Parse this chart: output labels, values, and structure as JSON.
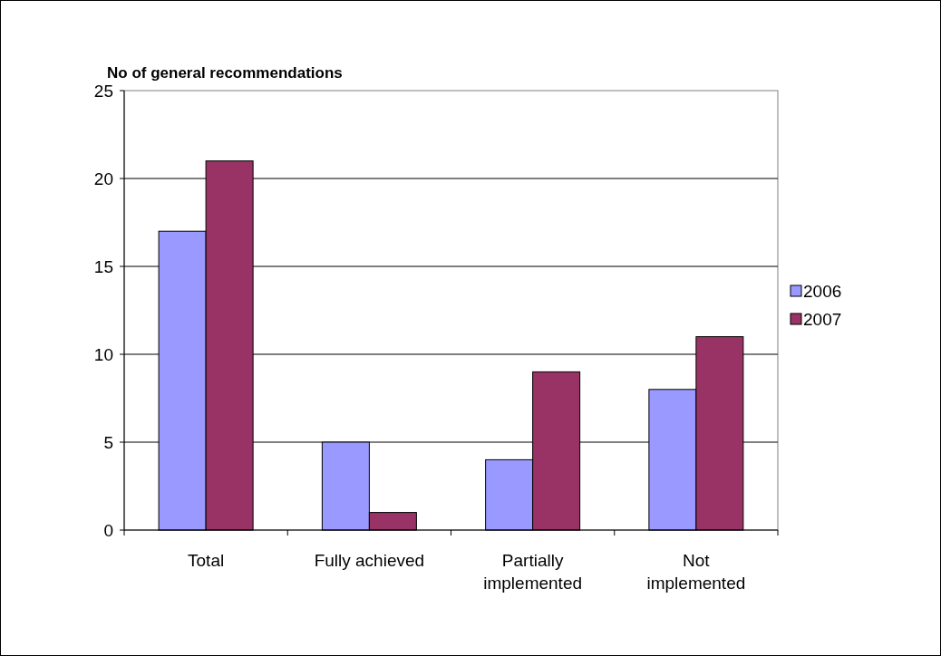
{
  "chart_data": {
    "type": "bar",
    "title": "No of general recommendations",
    "categories": [
      "Total",
      "Fully achieved",
      "Partially implemented",
      "Not implemented"
    ],
    "series": [
      {
        "name": "2006",
        "color": "#9999ff",
        "values": [
          17,
          5,
          4,
          8
        ]
      },
      {
        "name": "2007",
        "color": "#993366",
        "values": [
          21,
          1,
          9,
          11
        ]
      }
    ],
    "ylim": [
      0,
      25
    ],
    "yticks": [
      0,
      5,
      10,
      15,
      20,
      25
    ],
    "grid": "y",
    "legend": "right"
  }
}
